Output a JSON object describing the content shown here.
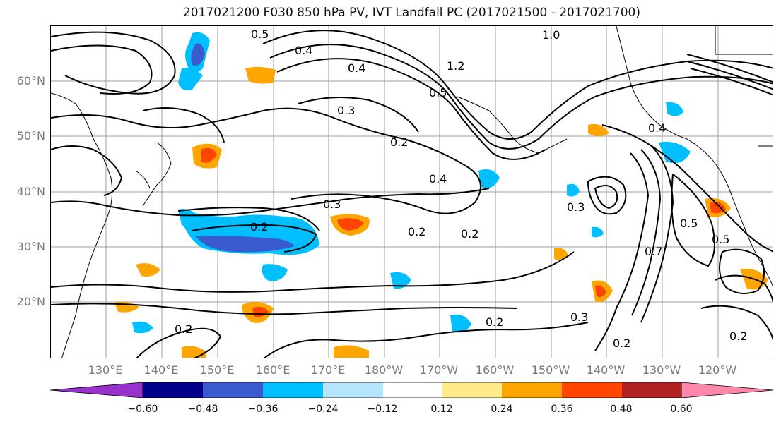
{
  "title": "2017021200 F030 850 hPa PV, IVT Landfall PC (2017021500 - 2017021700)",
  "map": {
    "lat_labels": [
      "60°N",
      "50°N",
      "40°N",
      "30°N",
      "20°N"
    ],
    "lon_labels": [
      "130°E",
      "140°E",
      "150°E",
      "160°E",
      "170°E",
      "180°W",
      "170°W",
      "160°W",
      "150°W",
      "140°W",
      "130°W",
      "120°W"
    ],
    "contour_labels": [
      "0.5",
      "0.4",
      "0.4",
      "1.0",
      "1.2",
      "0.5",
      "0.3",
      "0.2",
      "0.4",
      "0.3",
      "0.2",
      "0.2",
      "0.2",
      "0.4",
      "0.7",
      "0.5",
      "0.5",
      "0.3",
      "0.2",
      "0.3",
      "0.2",
      "0.2",
      "0.2"
    ],
    "contour_color": "#000000",
    "grid_color": "#9e9e9e"
  },
  "colorbar": {
    "colors": [
      "#9932cc",
      "#00008b",
      "#3a5bd0",
      "#00bfff",
      "#b3e5fc",
      "#ffffff",
      "#ffeb8a",
      "#ffa500",
      "#ff4500",
      "#b22222",
      "#ff88aa"
    ],
    "tick_labels": [
      "−0.60",
      "−0.48",
      "−0.36",
      "−0.24",
      "−0.12",
      "0.12",
      "0.24",
      "0.36",
      "0.48",
      "0.60"
    ]
  }
}
